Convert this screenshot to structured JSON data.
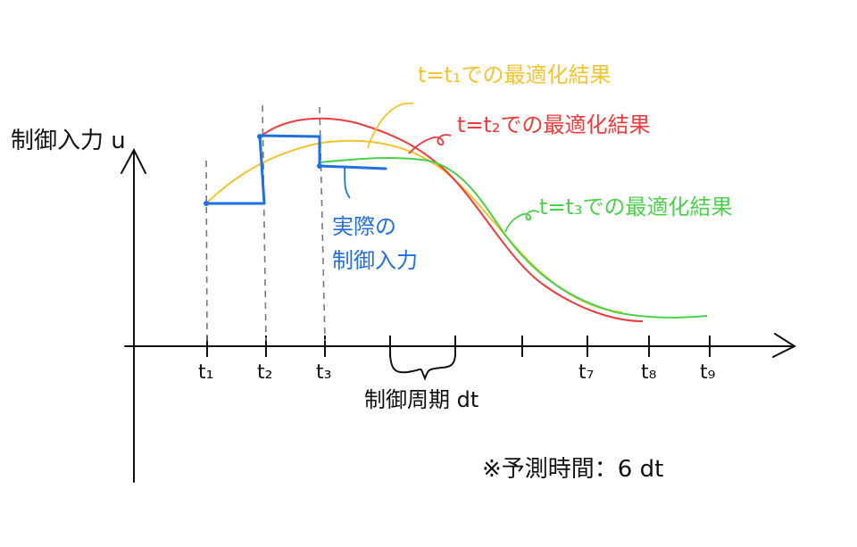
{
  "diagram": {
    "y_axis_label": "制御入力 u",
    "x_ticks": [
      "t₁",
      "t₂",
      "t₃",
      "t₇",
      "t₈",
      "t₉"
    ],
    "period_label": "制御周期 dt",
    "note": "※予測時間：6 dt",
    "curve_labels": {
      "t1": "t=t₁での最適化結果",
      "t2": "t=t₂での最適化結果",
      "t3": "t=t₃での最適化結果"
    },
    "actual_label_line1": "実際の",
    "actual_label_line2": "制御入力",
    "colors": {
      "t1_curve": "#f4c430",
      "t2_curve": "#ee3b3b",
      "t3_curve": "#4cd04c",
      "actual_input": "#1f6fe0",
      "axis": "#111111",
      "dashed": "#777777"
    }
  }
}
